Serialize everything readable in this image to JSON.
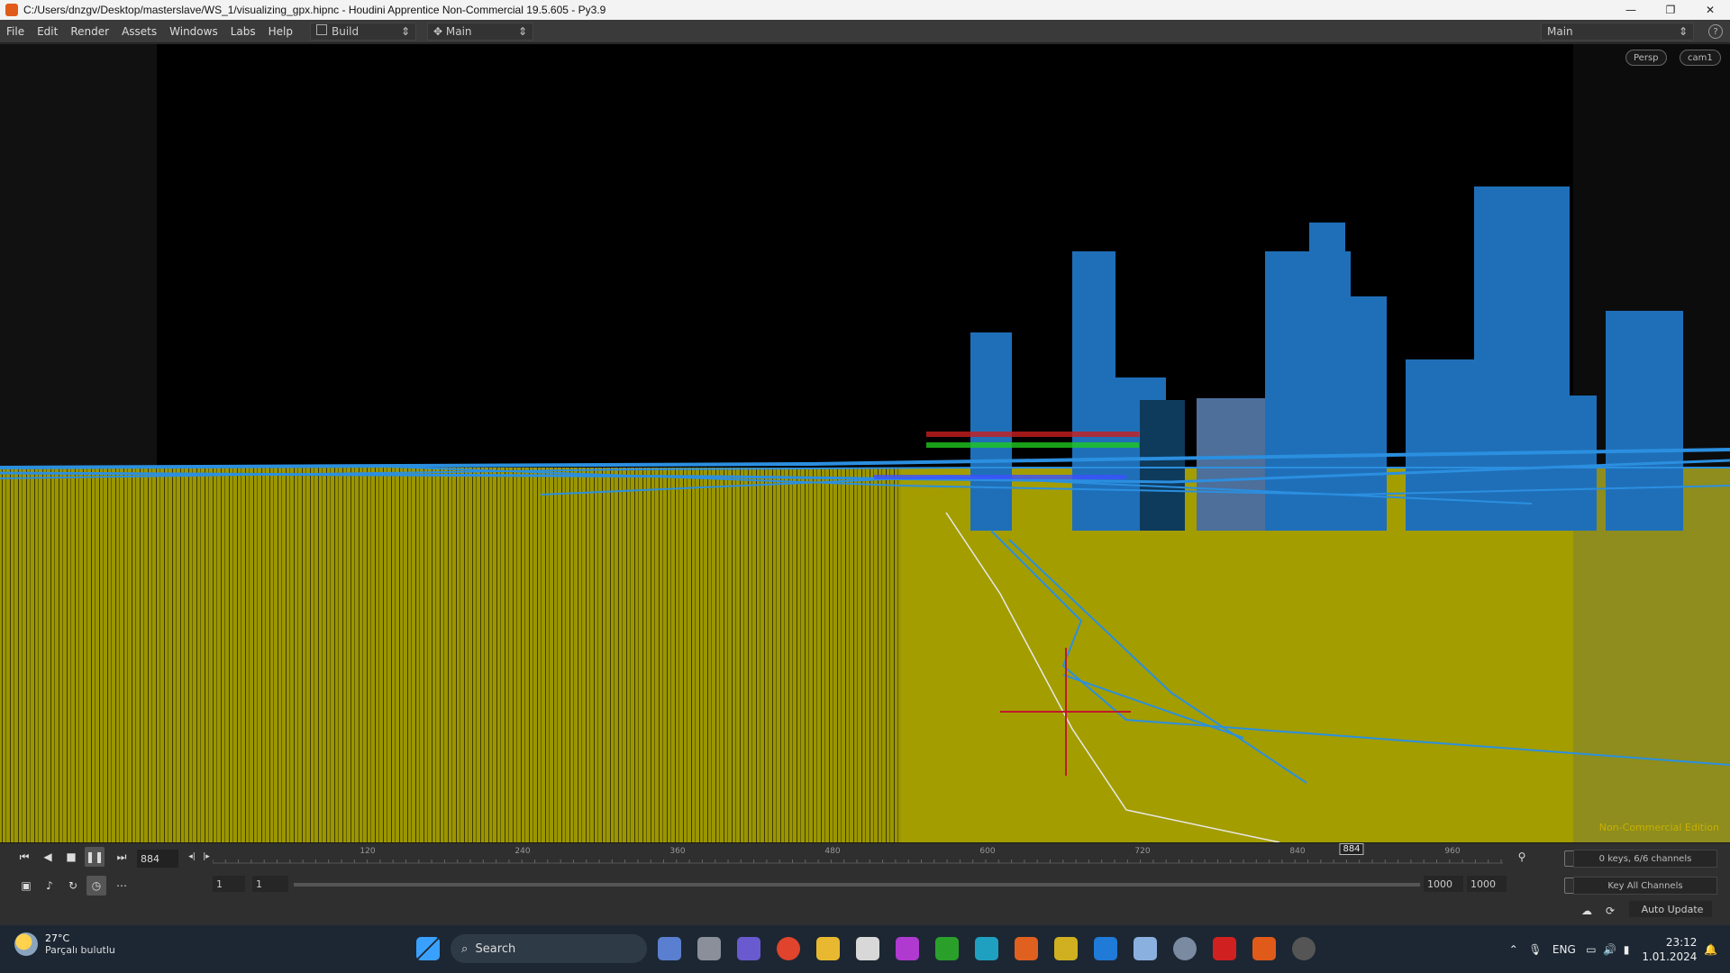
{
  "window": {
    "title": "C:/Users/dnzgv/Desktop/masterslave/WS_1/visualizing_gpx.hipnc - Houdini Apprentice Non-Commercial 19.5.605 - Py3.9",
    "controls": {
      "minimize": "—",
      "maximize": "❐",
      "close": "✕"
    }
  },
  "menubar": {
    "items": [
      "File",
      "Edit",
      "Render",
      "Assets",
      "Windows",
      "Labs",
      "Help"
    ],
    "desktop_selector": "Build",
    "workspace_selector": "Main",
    "right_selector": "Main",
    "help_icon": "?"
  },
  "viewport": {
    "camera_mode": "Persp",
    "camera_name": "cam1",
    "watermark": "Non-Commercial Edition",
    "colors": {
      "ground": "#a09a00",
      "buildings": "#1f6fb8",
      "paths": "#2b8fe0",
      "route": "#ffffff",
      "crosshair": "#c0182a"
    }
  },
  "timeline": {
    "current_frame": "884",
    "frame_field": "884",
    "ruler_ticks": [
      "120",
      "240",
      "360",
      "480",
      "600",
      "720",
      "840",
      "960"
    ],
    "start_frame": "1",
    "start_frame_2": "1",
    "end_frame": "1000",
    "end_frame_2": "1000",
    "keys_info": "0 keys, 6/6 channels",
    "key_all": "Key All Channels",
    "auto_update": "Auto Update"
  },
  "taskbar": {
    "weather_temp": "27°C",
    "weather_desc": "Parçalı bulutlu",
    "search_placeholder": "Search",
    "language": "ENG",
    "time": "23:12",
    "date": "1.01.2024"
  }
}
